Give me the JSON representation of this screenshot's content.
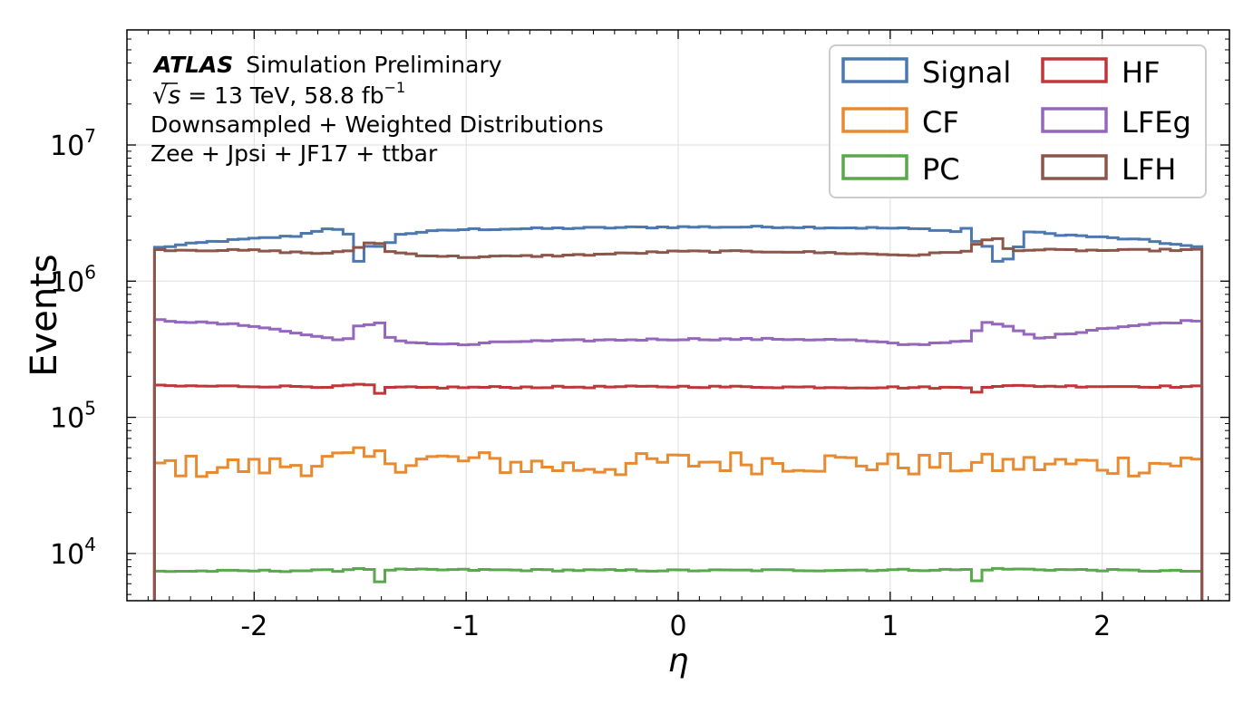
{
  "chart_data": {
    "type": "line",
    "step": true,
    "xlabel": "η",
    "ylabel": "Events",
    "xlim": [
      -2.6,
      2.6
    ],
    "ylim": [
      4500,
      70000000
    ],
    "yscale": "log",
    "grid": true,
    "legend_placement": "top-right",
    "x_ticks": [
      {
        "value": -2,
        "label": "-2"
      },
      {
        "value": -1,
        "label": "-1"
      },
      {
        "value": 0,
        "label": "0"
      },
      {
        "value": 1,
        "label": "1"
      },
      {
        "value": 2,
        "label": "2"
      }
    ],
    "y_ticks": [
      {
        "value": 10000,
        "base": "10",
        "exp": "4"
      },
      {
        "value": 100000,
        "base": "10",
        "exp": "5"
      },
      {
        "value": 1000000,
        "base": "10",
        "exp": "6"
      },
      {
        "value": 10000000,
        "base": "10",
        "exp": "7"
      }
    ],
    "annotation": {
      "experiment": "ATLAS",
      "label": "Simulation Preliminary",
      "sqrt_symbol": "√",
      "s_symbol": "s",
      "energy": " = 13 TeV,  58.8 fb",
      "lumi_exponent": "−1",
      "line3": "Downsampled + Weighted Distributions",
      "line4": "Zee + Jpsi + JF17 + ttbar"
    },
    "bin_edges": {
      "start": -2.47,
      "end": 2.47,
      "count": 100
    },
    "series": [
      {
        "name": "Signal",
        "color": "#4c78b0",
        "anchors": [
          [
            -2.47,
            1750000
          ],
          [
            -2.2,
            1950000
          ],
          [
            -1.8,
            2150000
          ],
          [
            -1.65,
            2450000
          ],
          [
            -1.56,
            2300000
          ],
          [
            -1.52,
            1400000
          ],
          [
            -1.47,
            1800000
          ],
          [
            -1.37,
            1800000
          ],
          [
            -1.33,
            2200000
          ],
          [
            -1.2,
            2300000
          ],
          [
            -1.0,
            2400000
          ],
          [
            -0.5,
            2450000
          ],
          [
            0.0,
            2500000
          ],
          [
            0.5,
            2500000
          ],
          [
            1.0,
            2450000
          ],
          [
            1.2,
            2400000
          ],
          [
            1.33,
            2300000
          ],
          [
            1.37,
            2500000
          ],
          [
            1.42,
            1800000
          ],
          [
            1.52,
            1800000
          ],
          [
            1.56,
            1400000
          ],
          [
            1.65,
            2300000
          ],
          [
            1.8,
            2200000
          ],
          [
            2.2,
            2000000
          ],
          [
            2.47,
            1750000
          ]
        ],
        "dips": [
          [
            -1.52,
            1400000
          ],
          [
            -1.47,
            1800000
          ],
          [
            1.47,
            1800000
          ],
          [
            1.52,
            1400000
          ]
        ]
      },
      {
        "name": "CF",
        "color": "#e88a30",
        "anchors": [
          [
            -2.47,
            45000
          ],
          [
            -2.0,
            43000
          ],
          [
            -1.5,
            50000
          ],
          [
            -1.0,
            48000
          ],
          [
            -0.5,
            43000
          ],
          [
            0.0,
            47000
          ],
          [
            0.5,
            48000
          ],
          [
            1.0,
            46000
          ],
          [
            1.5,
            45000
          ],
          [
            2.0,
            45000
          ],
          [
            2.47,
            47000
          ]
        ],
        "noise": 0.2
      },
      {
        "name": "PC",
        "color": "#58a84c",
        "anchors": [
          [
            -2.47,
            7400
          ],
          [
            -1.6,
            7500
          ],
          [
            -1.5,
            7800
          ],
          [
            -1.4,
            7600
          ],
          [
            0.0,
            7500
          ],
          [
            1.4,
            7600
          ],
          [
            1.5,
            7700
          ],
          [
            2.47,
            7400
          ]
        ],
        "dips": [
          [
            -1.42,
            6200
          ],
          [
            1.42,
            6300
          ]
        ]
      },
      {
        "name": "HF",
        "color": "#c0363a",
        "anchors": [
          [
            -2.47,
            170000
          ],
          [
            -1.6,
            168000
          ],
          [
            -1.5,
            175000
          ],
          [
            -1.4,
            165000
          ],
          [
            0.0,
            168000
          ],
          [
            1.4,
            165000
          ],
          [
            1.5,
            170000
          ],
          [
            2.47,
            168000
          ]
        ],
        "dips": [
          [
            -1.42,
            150000
          ],
          [
            1.42,
            153000
          ]
        ]
      },
      {
        "name": "LFEg",
        "color": "#9467bd",
        "anchors": [
          [
            -2.47,
            520000
          ],
          [
            -2.0,
            470000
          ],
          [
            -1.7,
            390000
          ],
          [
            -1.56,
            370000
          ],
          [
            -1.52,
            460000
          ],
          [
            -1.4,
            490000
          ],
          [
            -1.35,
            370000
          ],
          [
            -1.2,
            350000
          ],
          [
            -1.0,
            340000
          ],
          [
            -0.8,
            360000
          ],
          [
            -0.3,
            370000
          ],
          [
            0.0,
            375000
          ],
          [
            0.5,
            375000
          ],
          [
            0.8,
            370000
          ],
          [
            1.1,
            340000
          ],
          [
            1.3,
            360000
          ],
          [
            1.37,
            370000
          ],
          [
            1.45,
            500000
          ],
          [
            1.56,
            460000
          ],
          [
            1.7,
            380000
          ],
          [
            2.0,
            450000
          ],
          [
            2.47,
            520000
          ]
        ]
      },
      {
        "name": "LFH",
        "color": "#8c564b",
        "anchors": [
          [
            -2.47,
            1700000
          ],
          [
            -2.0,
            1680000
          ],
          [
            -1.7,
            1600000
          ],
          [
            -1.55,
            1650000
          ],
          [
            -1.5,
            1800000
          ],
          [
            -1.42,
            2000000
          ],
          [
            -1.37,
            1650000
          ],
          [
            -1.2,
            1550000
          ],
          [
            -1.0,
            1500000
          ],
          [
            -0.5,
            1550000
          ],
          [
            0.0,
            1650000
          ],
          [
            0.5,
            1650000
          ],
          [
            0.8,
            1600000
          ],
          [
            1.1,
            1550000
          ],
          [
            1.35,
            1650000
          ],
          [
            1.42,
            1900000
          ],
          [
            1.5,
            2100000
          ],
          [
            1.56,
            1700000
          ],
          [
            2.0,
            1680000
          ],
          [
            2.47,
            1700000
          ]
        ]
      }
    ]
  }
}
